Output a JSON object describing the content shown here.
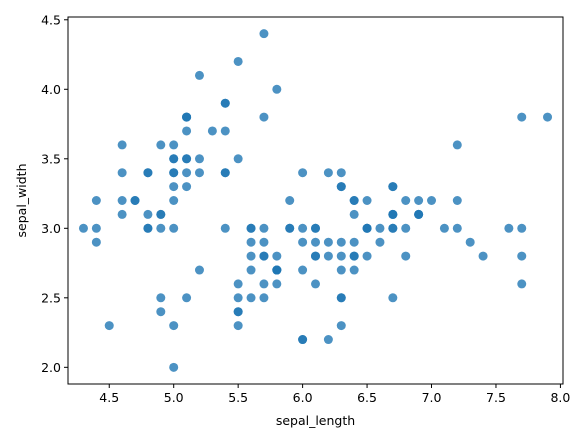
{
  "chart_data": {
    "type": "scatter",
    "title": "",
    "xlabel": "sepal_length",
    "ylabel": "sepal_width",
    "xlim": [
      4.18,
      8.02
    ],
    "ylim": [
      1.88,
      4.52
    ],
    "xticks": [
      4.5,
      5.0,
      5.5,
      6.0,
      6.5,
      7.0,
      7.5,
      8.0
    ],
    "xtick_labels": [
      "4.5",
      "5.0",
      "5.5",
      "6.0",
      "6.5",
      "7.0",
      "7.5",
      "8.0"
    ],
    "yticks": [
      2.0,
      2.5,
      3.0,
      3.5,
      4.0,
      4.5
    ],
    "ytick_labels": [
      "2.0",
      "2.5",
      "3.0",
      "3.5",
      "4.0",
      "4.5"
    ],
    "grid": false,
    "marker_color": "#1f77b4",
    "marker_alpha": 0.8,
    "series": [
      {
        "points": [
          [
            5.1,
            3.5
          ],
          [
            4.9,
            3.0
          ],
          [
            4.7,
            3.2
          ],
          [
            4.6,
            3.1
          ],
          [
            5.0,
            3.6
          ],
          [
            5.4,
            3.9
          ],
          [
            4.6,
            3.4
          ],
          [
            5.0,
            3.4
          ],
          [
            4.4,
            2.9
          ],
          [
            4.9,
            3.1
          ],
          [
            5.4,
            3.7
          ],
          [
            4.8,
            3.4
          ],
          [
            4.8,
            3.0
          ],
          [
            4.3,
            3.0
          ],
          [
            5.8,
            4.0
          ],
          [
            5.7,
            4.4
          ],
          [
            5.4,
            3.9
          ],
          [
            5.1,
            3.5
          ],
          [
            5.7,
            3.8
          ],
          [
            5.1,
            3.8
          ],
          [
            5.4,
            3.4
          ],
          [
            5.1,
            3.7
          ],
          [
            4.6,
            3.6
          ],
          [
            5.1,
            3.3
          ],
          [
            4.8,
            3.4
          ],
          [
            5.0,
            3.0
          ],
          [
            5.0,
            3.4
          ],
          [
            5.2,
            3.5
          ],
          [
            5.2,
            3.4
          ],
          [
            4.7,
            3.2
          ],
          [
            4.8,
            3.1
          ],
          [
            5.4,
            3.4
          ],
          [
            5.2,
            4.1
          ],
          [
            5.5,
            4.2
          ],
          [
            4.9,
            3.1
          ],
          [
            5.0,
            3.2
          ],
          [
            5.5,
            3.5
          ],
          [
            4.9,
            3.6
          ],
          [
            4.4,
            3.0
          ],
          [
            5.1,
            3.4
          ],
          [
            5.0,
            3.5
          ],
          [
            4.5,
            2.3
          ],
          [
            4.4,
            3.2
          ],
          [
            5.0,
            3.5
          ],
          [
            5.1,
            3.8
          ],
          [
            4.8,
            3.0
          ],
          [
            5.1,
            3.8
          ],
          [
            4.6,
            3.2
          ],
          [
            5.3,
            3.7
          ],
          [
            5.0,
            3.3
          ],
          [
            7.0,
            3.2
          ],
          [
            6.4,
            3.2
          ],
          [
            6.9,
            3.1
          ],
          [
            5.5,
            2.3
          ],
          [
            6.5,
            2.8
          ],
          [
            5.7,
            2.8
          ],
          [
            6.3,
            3.3
          ],
          [
            4.9,
            2.4
          ],
          [
            6.6,
            2.9
          ],
          [
            5.2,
            2.7
          ],
          [
            5.0,
            2.0
          ],
          [
            5.9,
            3.0
          ],
          [
            6.0,
            2.2
          ],
          [
            6.1,
            2.9
          ],
          [
            5.6,
            2.9
          ],
          [
            6.7,
            3.1
          ],
          [
            5.6,
            3.0
          ],
          [
            5.8,
            2.7
          ],
          [
            6.2,
            2.2
          ],
          [
            5.6,
            2.5
          ],
          [
            5.9,
            3.2
          ],
          [
            6.1,
            2.8
          ],
          [
            6.3,
            2.5
          ],
          [
            6.1,
            2.8
          ],
          [
            6.4,
            2.9
          ],
          [
            6.6,
            3.0
          ],
          [
            6.8,
            2.8
          ],
          [
            6.7,
            3.0
          ],
          [
            6.0,
            2.9
          ],
          [
            5.7,
            2.6
          ],
          [
            5.5,
            2.4
          ],
          [
            5.5,
            2.4
          ],
          [
            5.8,
            2.7
          ],
          [
            6.0,
            2.7
          ],
          [
            5.4,
            3.0
          ],
          [
            6.0,
            3.4
          ],
          [
            6.7,
            3.1
          ],
          [
            6.3,
            2.3
          ],
          [
            5.6,
            3.0
          ],
          [
            5.5,
            2.5
          ],
          [
            5.5,
            2.6
          ],
          [
            6.1,
            3.0
          ],
          [
            5.8,
            2.6
          ],
          [
            5.0,
            2.3
          ],
          [
            5.6,
            2.7
          ],
          [
            5.7,
            3.0
          ],
          [
            5.7,
            2.9
          ],
          [
            6.2,
            2.9
          ],
          [
            5.1,
            2.5
          ],
          [
            5.7,
            2.8
          ],
          [
            6.3,
            3.3
          ],
          [
            5.8,
            2.7
          ],
          [
            7.1,
            3.0
          ],
          [
            6.3,
            2.9
          ],
          [
            6.5,
            3.0
          ],
          [
            7.6,
            3.0
          ],
          [
            4.9,
            2.5
          ],
          [
            7.3,
            2.9
          ],
          [
            6.7,
            2.5
          ],
          [
            7.2,
            3.6
          ],
          [
            6.5,
            3.2
          ],
          [
            6.4,
            2.7
          ],
          [
            6.8,
            3.0
          ],
          [
            5.7,
            2.5
          ],
          [
            5.8,
            2.8
          ],
          [
            6.4,
            3.2
          ],
          [
            6.5,
            3.0
          ],
          [
            7.7,
            3.8
          ],
          [
            7.7,
            2.6
          ],
          [
            6.0,
            2.2
          ],
          [
            6.9,
            3.2
          ],
          [
            5.6,
            2.8
          ],
          [
            7.7,
            2.8
          ],
          [
            6.3,
            2.7
          ],
          [
            6.7,
            3.3
          ],
          [
            7.2,
            3.2
          ],
          [
            6.2,
            2.8
          ],
          [
            6.1,
            3.0
          ],
          [
            6.4,
            2.8
          ],
          [
            7.2,
            3.0
          ],
          [
            7.4,
            2.8
          ],
          [
            7.9,
            3.8
          ],
          [
            6.4,
            2.8
          ],
          [
            6.3,
            2.8
          ],
          [
            6.1,
            2.6
          ],
          [
            7.7,
            3.0
          ],
          [
            6.3,
            3.4
          ],
          [
            6.4,
            3.1
          ],
          [
            6.0,
            3.0
          ],
          [
            6.9,
            3.1
          ],
          [
            6.7,
            3.1
          ],
          [
            6.9,
            3.1
          ],
          [
            5.8,
            2.7
          ],
          [
            6.8,
            3.2
          ],
          [
            6.7,
            3.3
          ],
          [
            6.7,
            3.0
          ],
          [
            6.3,
            2.5
          ],
          [
            6.5,
            3.0
          ],
          [
            6.2,
            3.4
          ],
          [
            5.9,
            3.0
          ]
        ]
      }
    ]
  }
}
